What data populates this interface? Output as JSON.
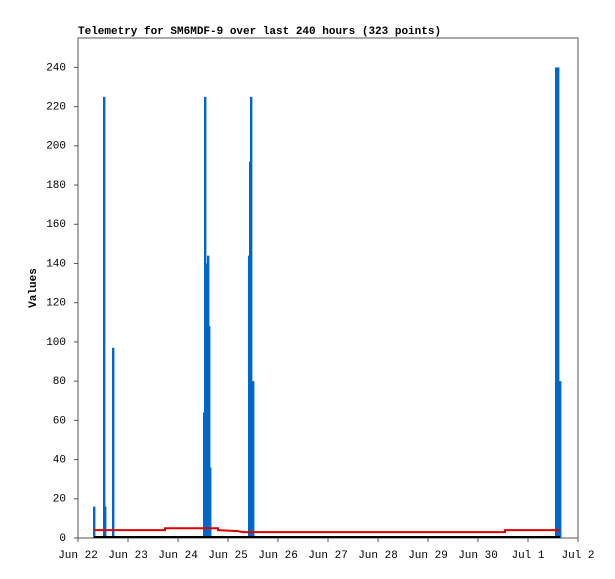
{
  "chart_data": {
    "type": "line",
    "title": "Telemetry for SM6MDF-9 over last 240 hours (323 points)",
    "y_label": "Values",
    "xlim": [
      0,
      10
    ],
    "xticks": [
      {
        "value": 0,
        "label": "Jun 22"
      },
      {
        "value": 1,
        "label": "Jun 23"
      },
      {
        "value": 2,
        "label": "Jun 24"
      },
      {
        "value": 3,
        "label": "Jun 25"
      },
      {
        "value": 4,
        "label": "Jun 26"
      },
      {
        "value": 5,
        "label": "Jun 27"
      },
      {
        "value": 6,
        "label": "Jun 28"
      },
      {
        "value": 7,
        "label": "Jun 29"
      },
      {
        "value": 8,
        "label": "Jun 30"
      },
      {
        "value": 9,
        "label": "Jul 1"
      },
      {
        "value": 10,
        "label": "Jul 2"
      }
    ],
    "ylim": [
      0,
      255
    ],
    "yticks": [
      0,
      20,
      40,
      60,
      80,
      100,
      120,
      140,
      160,
      180,
      200,
      220,
      240
    ],
    "grid": false,
    "series": [
      {
        "kind": "bar",
        "color": "#0066cc",
        "x": [
          0.32,
          0.52,
          0.54,
          0.7,
          2.52,
          2.54,
          2.56,
          2.58,
          2.6,
          2.62,
          2.64,
          3.42,
          3.44,
          3.46,
          3.5,
          9.56,
          9.6,
          9.64
        ],
        "values": [
          16,
          225,
          16,
          97,
          64,
          225,
          132,
          140,
          144,
          108,
          36,
          144,
          192,
          225,
          80,
          240,
          240,
          80
        ]
      },
      {
        "kind": "line",
        "color": "#000000",
        "x": [
          0.32,
          9.64
        ],
        "values": [
          0.5,
          0.5
        ]
      },
      {
        "kind": "line",
        "color": "#dd0000",
        "x": [
          0.32,
          1.74,
          1.74,
          2.8,
          2.8,
          3.2,
          3.3,
          8.54,
          8.54,
          9.64
        ],
        "values": [
          4,
          4,
          5,
          5,
          4,
          3.5,
          3,
          3,
          4,
          4
        ]
      }
    ]
  }
}
